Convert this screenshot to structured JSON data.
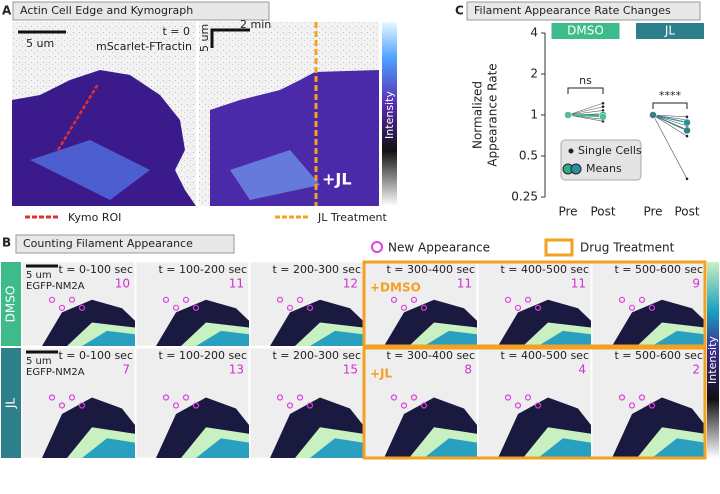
{
  "panel_a": {
    "letter": "A",
    "title": "Actin Cell Edge and Kymograph",
    "scale_bar": "5 um",
    "time": "t = 0",
    "marker": "mScarlet-FTractin",
    "kymo_time_bar": "2 min",
    "kymo_space_bar": "5 um",
    "treatment": "+JL",
    "colorbar_label": "Intensity",
    "legend": [
      "Kymo ROI",
      "JL Treatment"
    ]
  },
  "panel_b": {
    "letter": "B",
    "title": "Counting Filament Appearance",
    "legend": [
      "New Appearance",
      "Drug Treatment"
    ],
    "scale_bar": "5 um",
    "marker": "EGFP-NM2A",
    "colorbar_label": "Intensity",
    "rows": [
      {
        "name": "DMSO",
        "treatment": "+DMSO",
        "tiles": [
          {
            "time": "t = 0-100 sec",
            "count": 10
          },
          {
            "time": "t = 100-200 sec",
            "count": 11
          },
          {
            "time": "t = 200-300 sec",
            "count": 12
          },
          {
            "time": "t = 300-400 sec",
            "count": 11
          },
          {
            "time": "t = 400-500 sec",
            "count": 11
          },
          {
            "time": "t = 500-600 sec",
            "count": 9
          }
        ]
      },
      {
        "name": "JL",
        "treatment": "+JL",
        "tiles": [
          {
            "time": "t = 0-100 sec",
            "count": 7
          },
          {
            "time": "t = 100-200 sec",
            "count": 13
          },
          {
            "time": "t = 200-300 sec",
            "count": 15
          },
          {
            "time": "t = 300-400 sec",
            "count": 8
          },
          {
            "time": "t = 400-500 sec",
            "count": 4
          },
          {
            "time": "t = 500-600 sec",
            "count": 2
          }
        ]
      }
    ]
  },
  "chart_data": {
    "type": "paired-dot",
    "letter": "C",
    "title": "Filament Appearance Rate Changes",
    "y_label": [
      "Normalized",
      "Appearance Rate"
    ],
    "log_scale": true,
    "ylim": [
      0.25,
      4
    ],
    "yticks": [
      0.25,
      0.5,
      1,
      2,
      4
    ],
    "groups": [
      {
        "name": "DMSO",
        "color": "#3dbb8a",
        "categories": [
          "Pre",
          "Post"
        ],
        "significance": "ns",
        "cells": [
          [
            1,
            1.22
          ],
          [
            1,
            1.15
          ],
          [
            1,
            1.08
          ],
          [
            1,
            1.02
          ],
          [
            1,
            0.98
          ],
          [
            1,
            0.93
          ],
          [
            1,
            0.9
          ]
        ],
        "means": [
          [
            1,
            1.0
          ],
          [
            1,
            0.97
          ]
        ],
        "mean_colors": [
          "#2fae7f",
          "#4cc08f"
        ]
      },
      {
        "name": "JL",
        "color": "#2d7f8c",
        "categories": [
          "Pre",
          "Post"
        ],
        "significance": "****",
        "cells": [
          [
            1,
            0.97
          ],
          [
            1,
            0.92
          ],
          [
            1,
            0.88
          ],
          [
            1,
            0.83
          ],
          [
            1,
            0.78
          ],
          [
            1,
            0.7
          ],
          [
            1,
            0.34
          ]
        ],
        "means": [
          [
            1,
            0.88
          ],
          [
            1,
            0.77
          ]
        ],
        "mean_colors": [
          "#2d8e9e",
          "#3a7c8a"
        ]
      }
    ],
    "legend": [
      "Single Cells",
      "Means"
    ]
  }
}
